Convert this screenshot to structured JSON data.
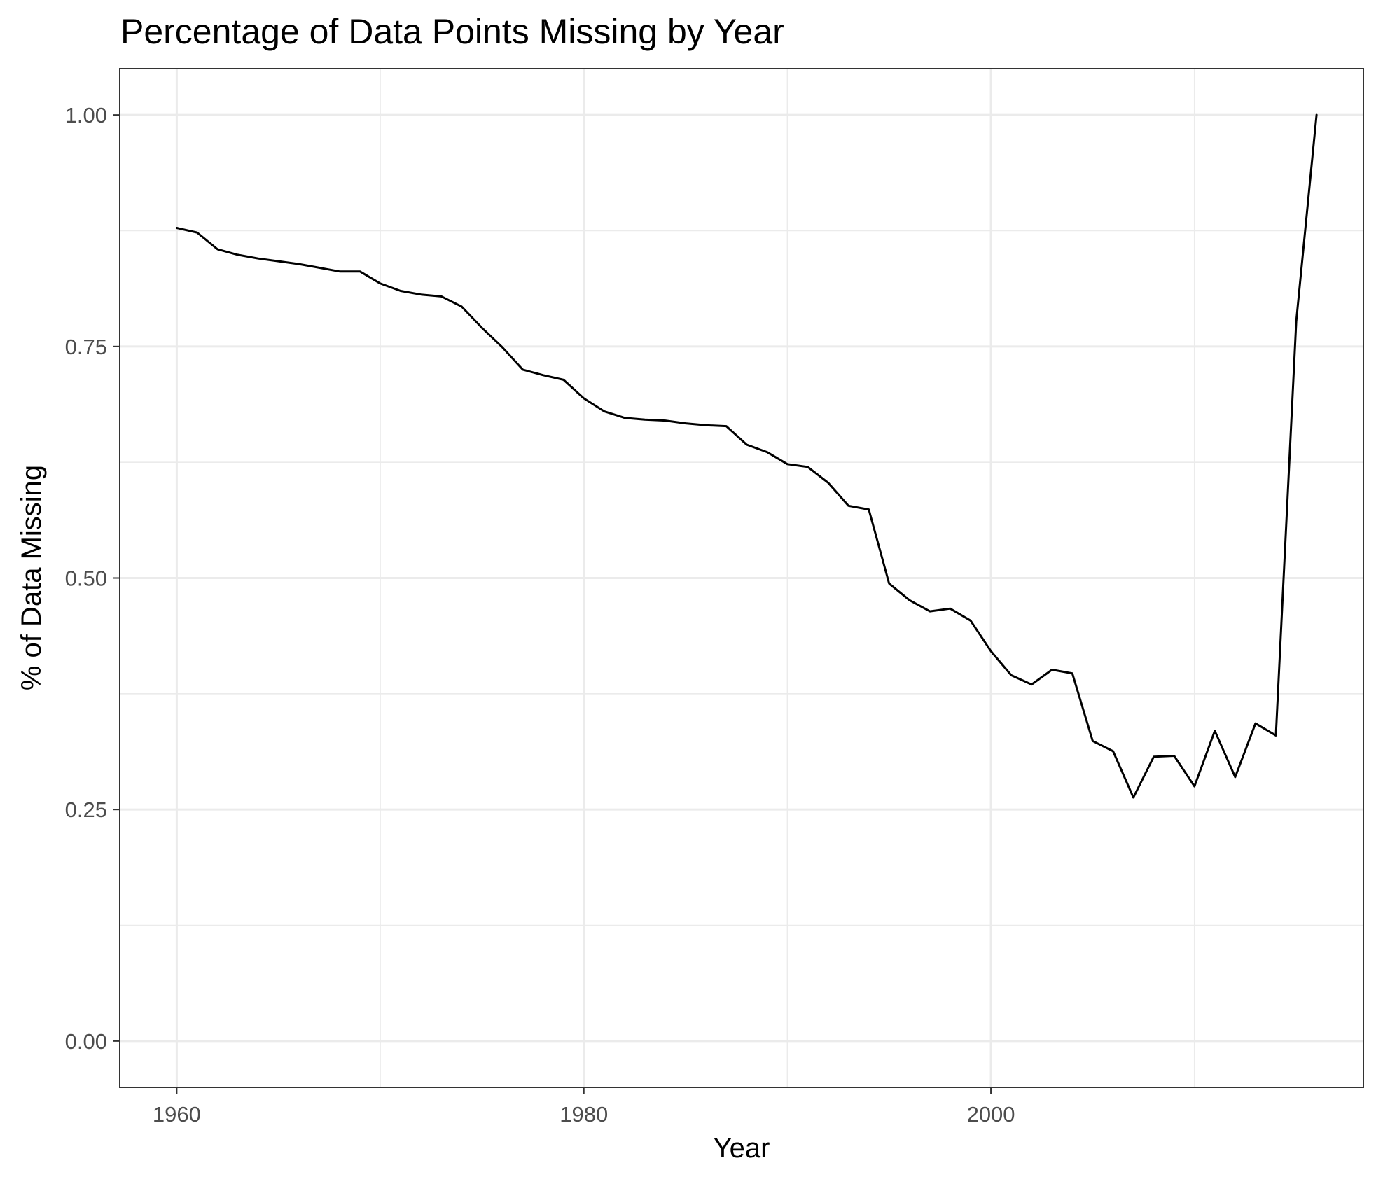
{
  "chart_data": {
    "type": "line",
    "title": "Percentage of Data Points Missing by Year",
    "xlabel": "Year",
    "ylabel": "% of Data Missing",
    "xlim": [
      1957.2,
      2018.3
    ],
    "ylim": [
      -0.05,
      1.05
    ],
    "x_ticks": [
      1960,
      1980,
      2000
    ],
    "x_tick_labels": [
      "1960",
      "1980",
      "2000"
    ],
    "x_minor_ticks": [
      1970,
      1990,
      2010
    ],
    "y_ticks": [
      0,
      0.25,
      0.5,
      0.75,
      1.0
    ],
    "y_tick_labels": [
      "0.00",
      "0.25",
      "0.50",
      "0.75",
      "1.00"
    ],
    "y_minor_ticks": [
      0.125,
      0.375,
      0.625,
      0.875
    ],
    "grid": true,
    "legend": "none",
    "series": [
      {
        "color": "#000000",
        "x": [
          1960,
          1961,
          1962,
          1963,
          1964,
          1965,
          1966,
          1967,
          1968,
          1969,
          1970,
          1971,
          1972,
          1973,
          1974,
          1975,
          1976,
          1977,
          1978,
          1979,
          1980,
          1981,
          1982,
          1983,
          1984,
          1985,
          1986,
          1987,
          1988,
          1989,
          1990,
          1991,
          1992,
          1993,
          1994,
          1995,
          1996,
          1997,
          1998,
          1999,
          2000,
          2001,
          2002,
          2003,
          2004,
          2005,
          2006,
          2007,
          2008,
          2009,
          2010,
          2011,
          2012,
          2013,
          2014,
          2015,
          2016
        ],
        "y": [
          0.878,
          0.873,
          0.855,
          0.849,
          0.845,
          0.842,
          0.839,
          0.835,
          0.831,
          0.831,
          0.818,
          0.81,
          0.806,
          0.804,
          0.793,
          0.77,
          0.749,
          0.725,
          0.719,
          0.714,
          0.694,
          0.68,
          0.673,
          0.671,
          0.67,
          0.667,
          0.665,
          0.664,
          0.644,
          0.636,
          0.623,
          0.62,
          0.603,
          0.578,
          0.574,
          0.494,
          0.476,
          0.464,
          0.467,
          0.454,
          0.421,
          0.395,
          0.385,
          0.401,
          0.397,
          0.324,
          0.313,
          0.263,
          0.307,
          0.308,
          0.275,
          0.335,
          0.285,
          0.343,
          0.33,
          0.777,
          1.0
        ]
      }
    ]
  }
}
